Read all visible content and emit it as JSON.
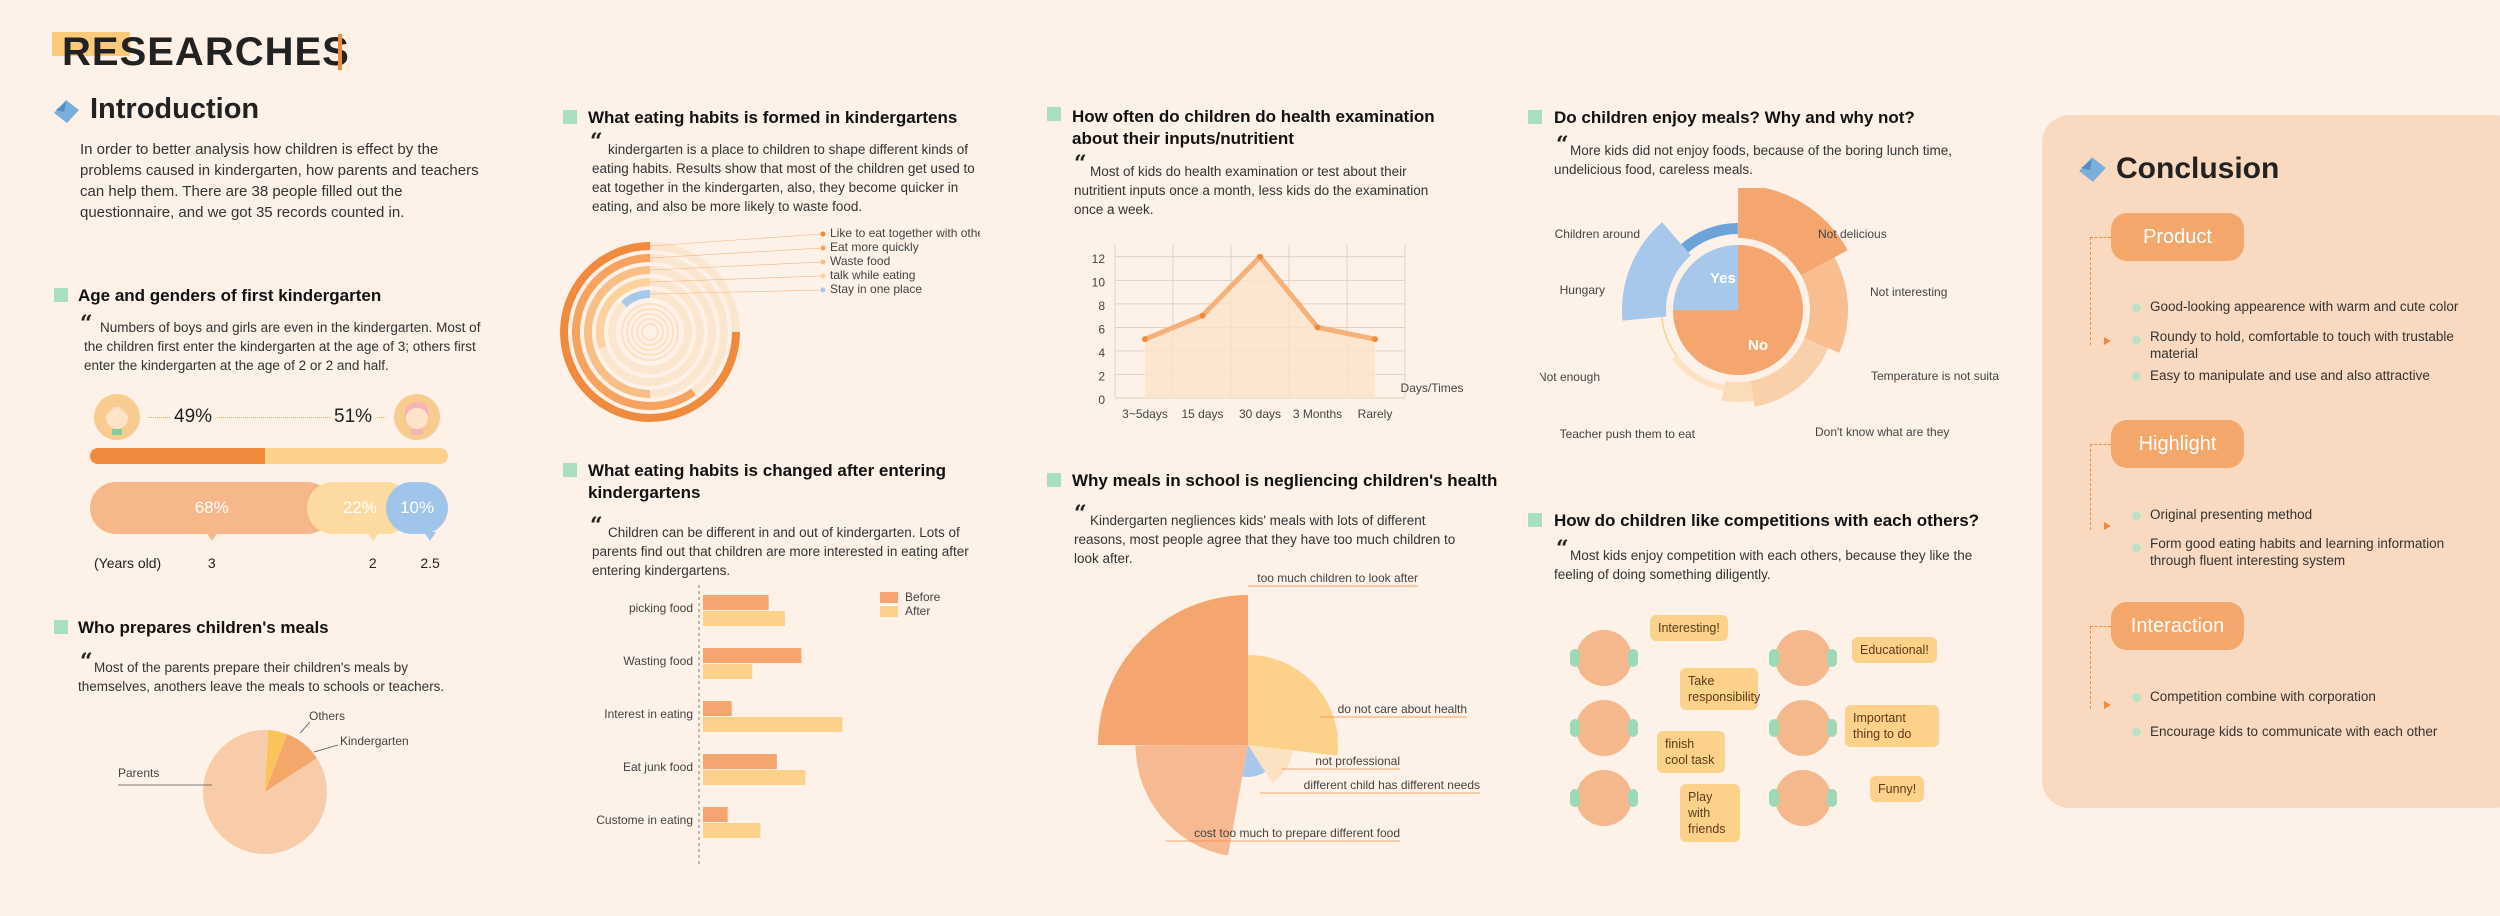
{
  "header": {
    "title": "RESEARCHES"
  },
  "intro": {
    "title": "Introduction",
    "text": "In order to better analysis how children is effect by the problems caused in kindergarten, how parents and teachers can help them. There are 38 people filled out the questionnaire, and we got 35 records counted in."
  },
  "age_gender": {
    "title": "Age and genders of first kindergarten",
    "text": "Numbers of boys and girls are even in the kindergarten. Most of the children first enter the kindergarten at the age of 3; others first enter the kindergarten at the age of 2 or 2 and half.",
    "boy_pct": "49%",
    "girl_pct": "51%",
    "boy_share": 0.49,
    "age_bar": [
      {
        "label": "68%",
        "share": 0.68,
        "age": "3",
        "color": "#f6b88a"
      },
      {
        "label": "22%",
        "share": 0.22,
        "age": "2",
        "color": "#fddba0"
      },
      {
        "label": "10%",
        "share": 0.1,
        "age": "2.5",
        "color": "#9fc6ea"
      }
    ],
    "years_label": "(Years old)"
  },
  "meals_prep": {
    "title": "Who prepares children's meals",
    "text": "Most of the parents prepare their children's meals by themselves, anothers leave the meals to schools or teachers.",
    "chart_data": {
      "type": "pie",
      "slices": [
        {
          "label": "Parents",
          "value": 85,
          "color": "#f8cca8"
        },
        {
          "label": "Kindergarten",
          "value": 10,
          "color": "#f3a76b"
        },
        {
          "label": "Others",
          "value": 5,
          "color": "#f9c45a"
        }
      ]
    }
  },
  "habits_formed": {
    "title": "What eating habits is formed in kindergartens",
    "text": "kindergarten is a place to children to shape different kinds of eating habits. Results show that most of the children get used to eat together in the kindergarten, also, they become quicker in eating, and also be more likely to waste food.",
    "chart_data": {
      "type": "radial-bar",
      "series": [
        {
          "label": "Like to eat together with others",
          "value": 75,
          "color": "#f08a3c"
        },
        {
          "label": "Eat more quickly",
          "value": 60,
          "color": "#f6a35f"
        },
        {
          "label": "Waste food",
          "value": 50,
          "color": "#f8be86"
        },
        {
          "label": "talk while eating",
          "value": 30,
          "color": "#fbd29c"
        },
        {
          "label": "Stay in one place",
          "value": 12,
          "color": "#a7c8ea"
        }
      ]
    }
  },
  "habits_changed": {
    "title": "What eating habits is changed after entering kindergartens",
    "text": "Children can be different in and out of kindergarten. Lots of parents find out that children are more interested in eating after entering kindergartens.",
    "chart_data": {
      "type": "bar",
      "orientation": "horizontal",
      "categories": [
        "picking food",
        "Wasting food",
        "Interest in eating",
        "Eat junk food",
        "Custome in eating"
      ],
      "series": [
        {
          "name": "Before",
          "values": [
            8,
            12,
            3.5,
            9,
            3
          ],
          "color": "#f5a56e"
        },
        {
          "name": "After",
          "values": [
            10,
            6,
            17,
            12.5,
            7
          ],
          "color": "#fcd28b"
        }
      ],
      "xlim": [
        0,
        20
      ]
    }
  },
  "health_exam": {
    "title": "How often do children do health examination about their inputs/nutritient",
    "text": "Most of kids do health examination or test about their nutritient inputs once a month, less kids do the examination once a week.",
    "chart_data": {
      "type": "line",
      "categories": [
        "3~5days",
        "15 days",
        "30 days",
        "3 Months",
        "Rarely"
      ],
      "values": [
        5,
        7,
        12,
        6,
        5
      ],
      "yticks": [
        "0",
        "2",
        "4",
        "6",
        "8",
        "10",
        "12"
      ],
      "ylim": [
        0,
        13
      ],
      "xlabel": "Days/Times"
    }
  },
  "neglect": {
    "title": "Why meals in school is negliencing children's health",
    "text": "Kindergarten negliences kids' meals with lots of different reasons, most people agree that they have too much children to look after.",
    "chart_data": {
      "type": "polar-area",
      "slices": [
        {
          "label": "too much children to look after",
          "value": 100,
          "color": "#f5a56e"
        },
        {
          "label": "do not care about health",
          "value": 60,
          "color": "#fcd28b"
        },
        {
          "label": "not professional",
          "value": 30,
          "color": "#fbe2c2"
        },
        {
          "label": "different child has different needs",
          "value": 15,
          "color": "#a7c8ea"
        },
        {
          "label": "cost too much to prepare different food",
          "value": 75,
          "color": "#f7b992"
        }
      ]
    }
  },
  "enjoy": {
    "title": "Do children enjoy meals? Why and why not?",
    "text": "More kids did not enjoy foods, because of the boring lunch time, undelicious food, careless meals.",
    "chart_data": {
      "type": "sunburst",
      "inner": [
        {
          "label": "Yes",
          "value": 25,
          "color": "#a7c8ea"
        },
        {
          "label": "No",
          "value": 75,
          "color": "#f5a56e"
        }
      ],
      "outer": [
        {
          "label": "Not delicious",
          "value": 20
        },
        {
          "label": "Not interesting",
          "value": 15
        },
        {
          "label": "Temperature is not suitable",
          "value": 17
        },
        {
          "label": "Don't know what are they",
          "value": 17
        },
        {
          "label": "Teacher push them to eat",
          "value": 15
        },
        {
          "label": "Not enough",
          "value": 8
        },
        {
          "label": "Hungary",
          "value": 12
        },
        {
          "label": "Children around",
          "value": 13
        }
      ]
    }
  },
  "competition": {
    "title": "How do children like competitions with each others?",
    "text": "Most kids enjoy competition with each others, because they like the feeling of doing something diligently.",
    "bubbles": [
      "Interesting!",
      "Educational!",
      "Take responsibility",
      "finish cool task",
      "Important thing to do",
      "Play with friends",
      "Funny!"
    ]
  },
  "conclusion": {
    "title": "Conclusion",
    "groups": [
      {
        "label": "Product",
        "items": [
          "Good-looking appearence with warm and cute color",
          "Roundy to hold, comfortable to touch with trustable material",
          "Easy to manipulate and use and also attractive"
        ]
      },
      {
        "label": "Highlight",
        "items": [
          "Original presenting method",
          "Form good eating habits and learning information through fluent interesting system"
        ]
      },
      {
        "label": "Interaction",
        "items": [
          "Competition combine with corporation",
          "Encourage kids to communicate with each other"
        ]
      }
    ]
  },
  "colors": {
    "accent": "#f3a76b",
    "blue": "#7aaedb",
    "mint": "#a9dfc1",
    "panel": "#f9d9bf"
  }
}
